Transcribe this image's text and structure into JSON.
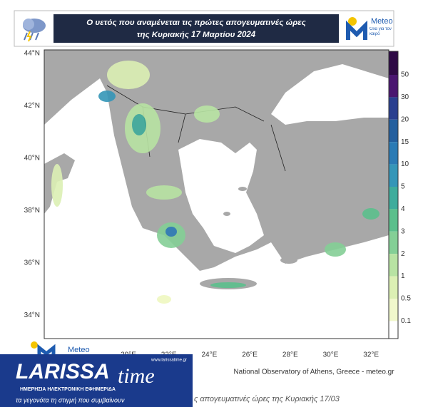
{
  "header": {
    "title_lines": [
      "Ο υετός που αναμένεται τις πρώτες απογευματινές ώρες",
      "της Κυριακής 17 Μαρτίου 2024"
    ],
    "logo": {
      "name": "Meteo",
      "tagline": "Όλα για τον καιρό"
    }
  },
  "map": {
    "lat_labels": [
      "44°N",
      "42°N",
      "40°N",
      "38°N",
      "36°N",
      "34°N"
    ],
    "lon_labels": [
      "20°E",
      "22°E",
      "24°E",
      "26°E",
      "28°E",
      "30°E",
      "32°E"
    ],
    "credit": "National Observatory of Athens, Greece - meteo.gr"
  },
  "legend": {
    "levels": [
      50,
      30,
      20,
      15,
      10,
      5,
      4,
      3,
      2,
      1,
      0.5,
      0.1
    ],
    "colors": [
      "#4a1670",
      "#2a3f8f",
      "#245f9e",
      "#2b7bb5",
      "#3596b8",
      "#3fac9c",
      "#5bbf8c",
      "#84cf96",
      "#b8e3a3",
      "#dcf0b4",
      "#f1f8cc",
      "#ffffff"
    ],
    "top_color": "#2e0a45"
  },
  "overlay": {
    "small_logo": "Meteo",
    "brand": "LARISSA",
    "brand_suffix": "time",
    "site": "www.larissatime.gr",
    "tagline1": "ΗΜΕΡΗΣΙΑ ΗΛΕΚΤΡΟΝΙΚΗ ΕΦΗΜΕΡΙΔΑ",
    "tagline2": "τα γεγονότα τη στιγμή που συμβαίνουν",
    "caption": "ς απογευματινές ώρες της Κυριακής 17/03"
  }
}
